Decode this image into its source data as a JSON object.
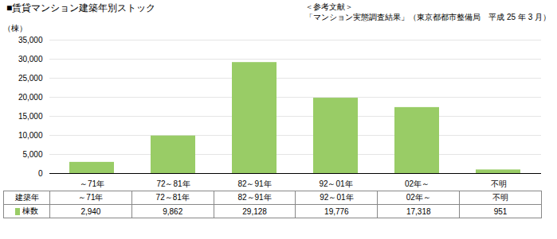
{
  "chart_data": {
    "type": "bar",
    "title": "■賃貸マンション建築年別ストック",
    "annotations": [
      "＜参考文献＞",
      "「マンション実態調査結果」（東京都都市整備局　平成 25 年 3 月）"
    ],
    "ylabel": "（棟）",
    "categories": [
      "～71年",
      "72～81年",
      "82～91年",
      "92～01年",
      "02年～",
      "不明"
    ],
    "values": [
      2940,
      9862,
      29128,
      19776,
      17318,
      951
    ],
    "color": "#99cc66",
    "ylim": [
      0,
      35000
    ],
    "yticks": [
      0,
      {
        "value": 5000,
        "label": "5,000"
      },
      {
        "value": 10000,
        "label": "10,000"
      },
      {
        "value": 15000,
        "label": "15,000"
      },
      {
        "value": 20000,
        "label": "20,000"
      },
      {
        "value": 25000,
        "label": "25,000"
      },
      {
        "value": 30000,
        "label": "30,000"
      },
      {
        "value": 35000,
        "label": "35,000"
      }
    ],
    "grid": true,
    "table": {
      "header": [
        "建築年",
        "～71年",
        "72～81年",
        "82～91年",
        "92～01年",
        "02年～",
        "不明"
      ],
      "rows": [
        {
          "label": "棟数",
          "color": "#99cc66",
          "values": [
            2940,
            9862,
            29128,
            19776,
            17318,
            951
          ],
          "value_labels": [
            "2,940",
            "9,862",
            "29,128",
            "19,776",
            "17,318",
            "951"
          ]
        }
      ]
    }
  }
}
